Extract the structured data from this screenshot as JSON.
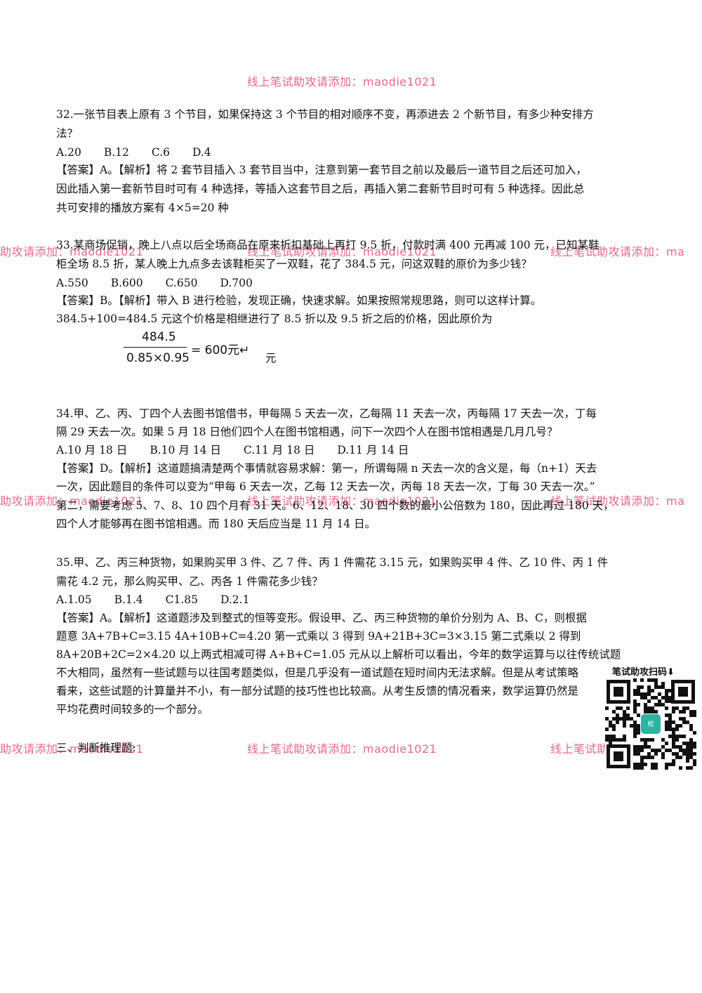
{
  "q32": {
    "stem1": "32.一张节目表上原有 3 个节目，如果保持这 3 个节目的相对顺序不变，再添进去 2 个新节目，有多少种安排方",
    "stem2": "法？",
    "options": [
      "A.20",
      "B.12",
      "C.6",
      "D.4"
    ],
    "ans1": "【答案】A。【解析】将 2 套节目插入 3 套节目当中，注意到第一套节目之前以及最后一道节目之后还可加入，",
    "ans2": "因此插入第一套新节目时可有 4 种选择，等插入这套节目之后，再插入第二套新节目时可有 5 种选择。因此总",
    "ans3": "共可安排的播放方案有 4×5=20 种"
  },
  "q33": {
    "stem1": "33.某商场促销，晚上八点以后全场商品在原来折扣基础上再打 9.5 折，付款时满 400 元再减 100 元，已知某鞋",
    "stem2": "柜全场 8.5 折，某人晚上九点多去该鞋柜买了一双鞋，花了 384.5 元，问这双鞋的原价为多少钱？",
    "options": [
      "A.550",
      "B.600",
      "C.650",
      "D.700"
    ],
    "ans1": "【答案】B。【解析】带入 B 进行检验，发现正确，快速求解。如果按照常规思路，则可以这样计算。",
    "ans2": "384.5+100=484.5 元这个价格是相继进行了 8.5 折以及 9.5 折之后的价格，因此原价为",
    "formula_num": "484.5",
    "formula_den": "0.85×0.95",
    "formula_eq": "= 600元↵",
    "unit": "元"
  },
  "q34": {
    "stem1": "34.甲、乙、丙、丁四个人去图书馆借书，甲每隔 5 天去一次，乙每隔 11 天去一次，丙每隔 17 天去一次，丁每",
    "stem2": "隔 29 天去一次。如果 5 月 18 日他们四个人在图书馆相遇，问下一次四个人在图书馆相遇是几月几号？",
    "options": [
      "A.10 月 18 日",
      "B.10 月 14 日",
      "C.11 月 18 日",
      "D.11 月 14 日"
    ],
    "ans1": "【答案】D。【解析】这道题搞清楚两个事情就容易求解：第一，所谓每隔 n 天去一次的含义是，每（n+1）天去",
    "ans2": "一次，因此题目的条件可以变为“甲每 6 天去一次，乙每 12 天去一次，丙每 18 天去一次，丁每 30 天去一次。”",
    "ans3": "第二，需要考虑 5、7、8、10 四个月有 31 天。6、12、18、30 四个数的最小公倍数为 180，因此再过 180 天，",
    "ans4": "四个人才能够再在图书馆相遇。而 180 天后应当是 11 月 14 日。"
  },
  "q35": {
    "stem1": "35.甲、乙、丙三种货物，如果购买甲 3 件、乙 7 件、丙 1 件需花 3.15 元，如果购买甲 4 件、乙 10 件、丙 1 件",
    "stem2": "需花 4.2 元，那么购买甲、乙、丙各 1 件需花多少钱？",
    "options": [
      "A.1.05",
      "B.1.4",
      "C1.85",
      "D.2.1"
    ],
    "ans1": "【答案】A。【解析】这道题涉及到整式的恒等变形。假设甲、乙、丙三种货物的单价分别为 A、B、C，则根据",
    "ans2": "题意 3A+7B+C=3.15      4A+10B+C=4.20 第一式乘以 3 得到     9A+21B+3C=3×3.15 第二式乘以 2 得到",
    "ans3": "8A+20B+2C=2×4.20 以上两式相减可得    A+B+C=1.05 元从以上解析可以看出，今年的数学运算与以往传统试题",
    "ans4": "不大相同，虽然有一些试题与以往国考题类似，但是几乎没有一道试题在短时间内无法求解。但是从考试策略",
    "ans5": "看来，这些试题的计算量并不小，有一部分试题的技巧性也比较高。从考生反馈的情况看来，数学运算仍然是",
    "ans6": "平均花费时间较多的一个部分。"
  },
  "section": "三、判断推理题:",
  "watermarks": {
    "top": "线上笔试助攻请添加：maodie1021",
    "left1": "助攻请添加：maodie1021",
    "mid1": "线上笔试助攻请添加：maodie1021",
    "right1": "线上笔试助攻请添加：ma",
    "left2": "助攻请添加：maodie1021",
    "mid2": "线上笔试助攻请添加：maodie1021",
    "right2": "线上笔试助攻请添加：ma",
    "left3": "助攻请添加：maodie1021",
    "mid3": "线上笔试助攻请添加：maodie1021",
    "right3": "线上笔试助攻请添加：ma"
  },
  "qr_title": "笔试助攻扫码⬇"
}
